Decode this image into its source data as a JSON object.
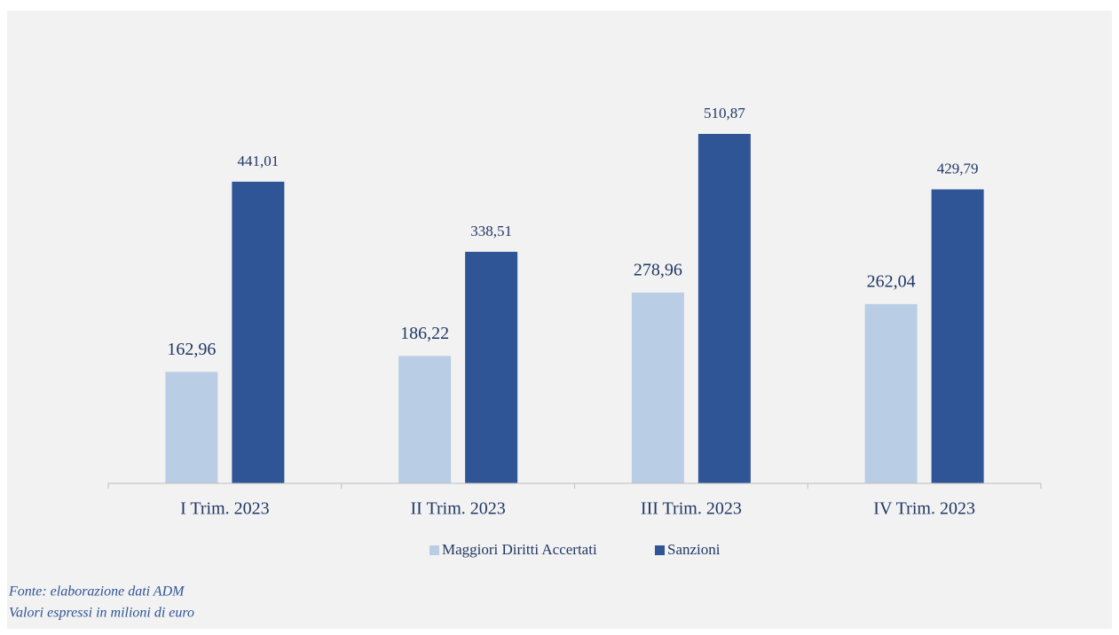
{
  "chart_data": {
    "type": "bar",
    "categories": [
      "I Trim. 2023",
      "II Trim. 2023",
      "III Trim. 2023",
      "IV Trim. 2023"
    ],
    "series": [
      {
        "name": "Maggiori Diritti Accertati",
        "color": "#b9cde5",
        "values": [
          162.96,
          186.22,
          278.96,
          262.04
        ],
        "value_labels": [
          "162,96",
          "186,22",
          "278,96",
          "262,04"
        ]
      },
      {
        "name": "Sanzioni",
        "color": "#2f5597",
        "values": [
          441.01,
          338.51,
          510.87,
          429.79
        ],
        "value_labels": [
          "441,01",
          "338,51",
          "510,87",
          "429,79"
        ]
      }
    ],
    "legend": "bottom",
    "notes": [
      "Fonte: elaborazione dati ADM",
      "Valori espressi in milioni di euro"
    ]
  }
}
